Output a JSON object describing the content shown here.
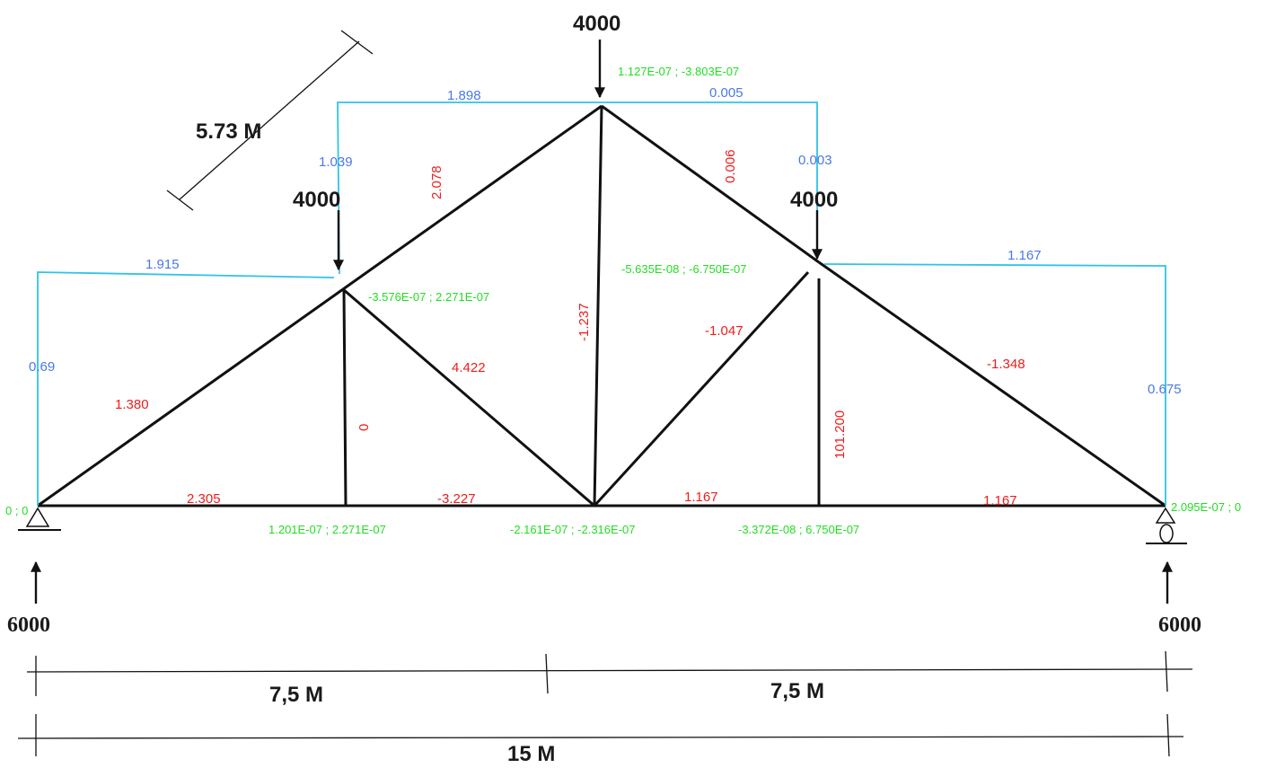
{
  "loads": {
    "top": "4000",
    "left": "4000",
    "right": "4000"
  },
  "reactions": {
    "left": "6000",
    "right": "6000"
  },
  "dimensions": {
    "member_length": "5.73 M",
    "half_left": "7,5 M",
    "half_right": "7,5 M",
    "span": "15 M"
  },
  "member_forces": {
    "left_bottom": "2.305",
    "center_left_bottom": "-3.227",
    "center_right_bottom": "1.167",
    "right_bottom": "1.167",
    "left_lower_chord": "1.380",
    "left_upper_chord": "2.078",
    "right_upper_chord": "0.006",
    "right_lower_chord": "-1.348",
    "left_vertical": "0",
    "left_diagonal": "4.422",
    "center_vertical": "-1.237",
    "right_diagonal": "-1.047",
    "right_vertical": "101.200"
  },
  "deflection_lines": {
    "left_height": "0.69",
    "left_span": "1.915",
    "left_node_height": "1.039",
    "top_left_span": "1.898",
    "top_right_span": "0.005",
    "right_node_height": "0.003",
    "right_span": "1.167",
    "right_height": "0.675"
  },
  "node_displacements": {
    "left_support": "0 ; 0",
    "top_node": "1.127E-07 ; -3.803E-07",
    "left_node": "-3.576E-07 ; 2.271E-07",
    "right_node": "-5.635E-08 ; -6.750E-07",
    "bottom_left": "1.201E-07 ; 2.271E-07",
    "bottom_center": "-2.161E-07 ; -2.316E-07",
    "bottom_right": "-3.372E-08 ; 6.750E-07",
    "right_support": "2.095E-07 ; 0"
  },
  "colors": {
    "member": "#111111",
    "force": "#ee1c1c",
    "deflection": "#4a78e8",
    "guide": "#2ec4e8",
    "displacement": "#22dd22"
  }
}
